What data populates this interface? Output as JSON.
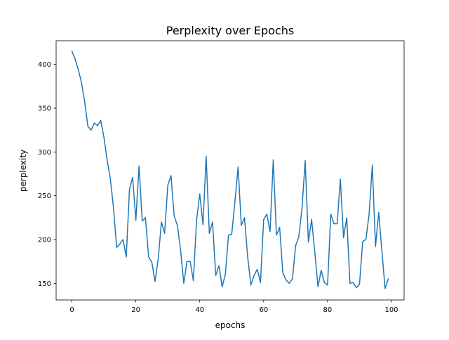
{
  "chart_data": {
    "type": "line",
    "title": "Perplexity over Epochs",
    "xlabel": "epochs",
    "ylabel": "perplexity",
    "xlim": [
      -4.95,
      103.95
    ],
    "ylim": [
      131,
      427
    ],
    "xticks": [
      0,
      20,
      40,
      60,
      80,
      100
    ],
    "yticks": [
      150,
      200,
      250,
      300,
      350,
      400
    ],
    "grid": false,
    "legend": "none",
    "series": [
      {
        "color": "#1f77b4",
        "x": [
          0,
          1,
          2,
          3,
          4,
          5,
          6,
          7,
          8,
          9,
          10,
          11,
          12,
          13,
          14,
          15,
          16,
          17,
          18,
          19,
          20,
          21,
          22,
          23,
          24,
          25,
          26,
          27,
          28,
          29,
          30,
          31,
          32,
          33,
          34,
          35,
          36,
          37,
          38,
          39,
          40,
          41,
          42,
          43,
          44,
          45,
          46,
          47,
          48,
          49,
          50,
          51,
          52,
          53,
          54,
          55,
          56,
          57,
          58,
          59,
          60,
          61,
          62,
          63,
          64,
          65,
          66,
          67,
          68,
          69,
          70,
          71,
          72,
          73,
          74,
          75,
          76,
          77,
          78,
          79,
          80,
          81,
          82,
          83,
          84,
          85,
          86,
          87,
          88,
          89,
          90,
          91,
          92,
          93,
          94,
          95,
          96,
          97,
          98,
          99
        ],
        "values": [
          415,
          406,
          394,
          379,
          357,
          329,
          325,
          333,
          330,
          336,
          317,
          291,
          270,
          236,
          191,
          195,
          200,
          180,
          257,
          271,
          222,
          284,
          221,
          225,
          180,
          174,
          152,
          178,
          220,
          207,
          262,
          273,
          227,
          216,
          188,
          150,
          175,
          175,
          153,
          222,
          252,
          217,
          295,
          207,
          220,
          159,
          170,
          146,
          160,
          205,
          206,
          243,
          283,
          216,
          225,
          180,
          148,
          159,
          166,
          151,
          223,
          229,
          209,
          291,
          205,
          214,
          162,
          154,
          150,
          155,
          193,
          203,
          236,
          290,
          197,
          223,
          186,
          146,
          165,
          151,
          148,
          229,
          218,
          218,
          269,
          202,
          225,
          150,
          151,
          145,
          149,
          198,
          200,
          229,
          285,
          192,
          231,
          187,
          144,
          155
        ]
      }
    ]
  }
}
